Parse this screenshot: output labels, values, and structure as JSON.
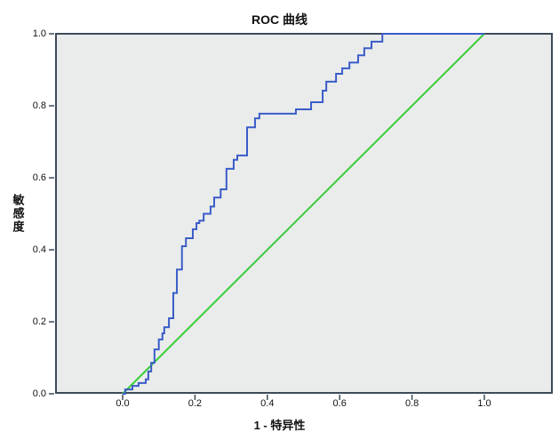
{
  "chart_data": {
    "type": "line",
    "title": "ROC 曲线",
    "xlabel": "1 - 特异性",
    "ylabel": "敏感度",
    "xlim": [
      0.0,
      1.0
    ],
    "ylim": [
      0.0,
      1.0
    ],
    "x_tick_labels": [
      "0.0",
      "0.2",
      "0.4",
      "0.6",
      "0.8",
      "1.0"
    ],
    "y_tick_labels": [
      "0.0",
      "0.2",
      "0.4",
      "0.6",
      "0.8",
      "1.0"
    ],
    "grid": false,
    "legend": null,
    "plot_bg_color": "#eaeceb",
    "frame_color": "#3d4a59",
    "tick_color": "#3d4a59",
    "series": [
      {
        "name": "roc-curve",
        "draw": "step-vertices",
        "color": "#3a5cc8",
        "points": [
          [
            0.0,
            0.0
          ],
          [
            0.007,
            0.0
          ],
          [
            0.007,
            0.012
          ],
          [
            0.027,
            0.012
          ],
          [
            0.027,
            0.022
          ],
          [
            0.044,
            0.022
          ],
          [
            0.044,
            0.03
          ],
          [
            0.064,
            0.03
          ],
          [
            0.064,
            0.04
          ],
          [
            0.071,
            0.04
          ],
          [
            0.071,
            0.062
          ],
          [
            0.079,
            0.062
          ],
          [
            0.079,
            0.086
          ],
          [
            0.088,
            0.086
          ],
          [
            0.088,
            0.123
          ],
          [
            0.1,
            0.123
          ],
          [
            0.1,
            0.151
          ],
          [
            0.11,
            0.151
          ],
          [
            0.11,
            0.168
          ],
          [
            0.115,
            0.168
          ],
          [
            0.115,
            0.185
          ],
          [
            0.128,
            0.185
          ],
          [
            0.128,
            0.21
          ],
          [
            0.14,
            0.21
          ],
          [
            0.14,
            0.28
          ],
          [
            0.15,
            0.28
          ],
          [
            0.15,
            0.345
          ],
          [
            0.164,
            0.345
          ],
          [
            0.164,
            0.41
          ],
          [
            0.175,
            0.41
          ],
          [
            0.175,
            0.432
          ],
          [
            0.194,
            0.432
          ],
          [
            0.194,
            0.457
          ],
          [
            0.204,
            0.457
          ],
          [
            0.204,
            0.474
          ],
          [
            0.212,
            0.474
          ],
          [
            0.212,
            0.481
          ],
          [
            0.224,
            0.481
          ],
          [
            0.224,
            0.5
          ],
          [
            0.243,
            0.5
          ],
          [
            0.243,
            0.52
          ],
          [
            0.253,
            0.52
          ],
          [
            0.253,
            0.545
          ],
          [
            0.271,
            0.545
          ],
          [
            0.271,
            0.568
          ],
          [
            0.287,
            0.568
          ],
          [
            0.287,
            0.625
          ],
          [
            0.307,
            0.625
          ],
          [
            0.307,
            0.65
          ],
          [
            0.317,
            0.65
          ],
          [
            0.317,
            0.662
          ],
          [
            0.344,
            0.662
          ],
          [
            0.344,
            0.74
          ],
          [
            0.366,
            0.74
          ],
          [
            0.366,
            0.765
          ],
          [
            0.378,
            0.765
          ],
          [
            0.378,
            0.778
          ],
          [
            0.479,
            0.778
          ],
          [
            0.479,
            0.79
          ],
          [
            0.521,
            0.79
          ],
          [
            0.521,
            0.81
          ],
          [
            0.553,
            0.81
          ],
          [
            0.553,
            0.842
          ],
          [
            0.563,
            0.842
          ],
          [
            0.563,
            0.867
          ],
          [
            0.59,
            0.867
          ],
          [
            0.59,
            0.889
          ],
          [
            0.607,
            0.889
          ],
          [
            0.607,
            0.904
          ],
          [
            0.627,
            0.904
          ],
          [
            0.627,
            0.92
          ],
          [
            0.651,
            0.92
          ],
          [
            0.651,
            0.94
          ],
          [
            0.668,
            0.94
          ],
          [
            0.668,
            0.96
          ],
          [
            0.688,
            0.96
          ],
          [
            0.688,
            0.978
          ],
          [
            0.718,
            0.978
          ],
          [
            0.718,
            1.0
          ],
          [
            1.0,
            1.0
          ]
        ]
      },
      {
        "name": "reference-line",
        "draw": "straight",
        "color": "#3bcc3b",
        "points": [
          [
            0.0,
            0.0
          ],
          [
            1.0,
            1.0
          ]
        ]
      }
    ]
  }
}
